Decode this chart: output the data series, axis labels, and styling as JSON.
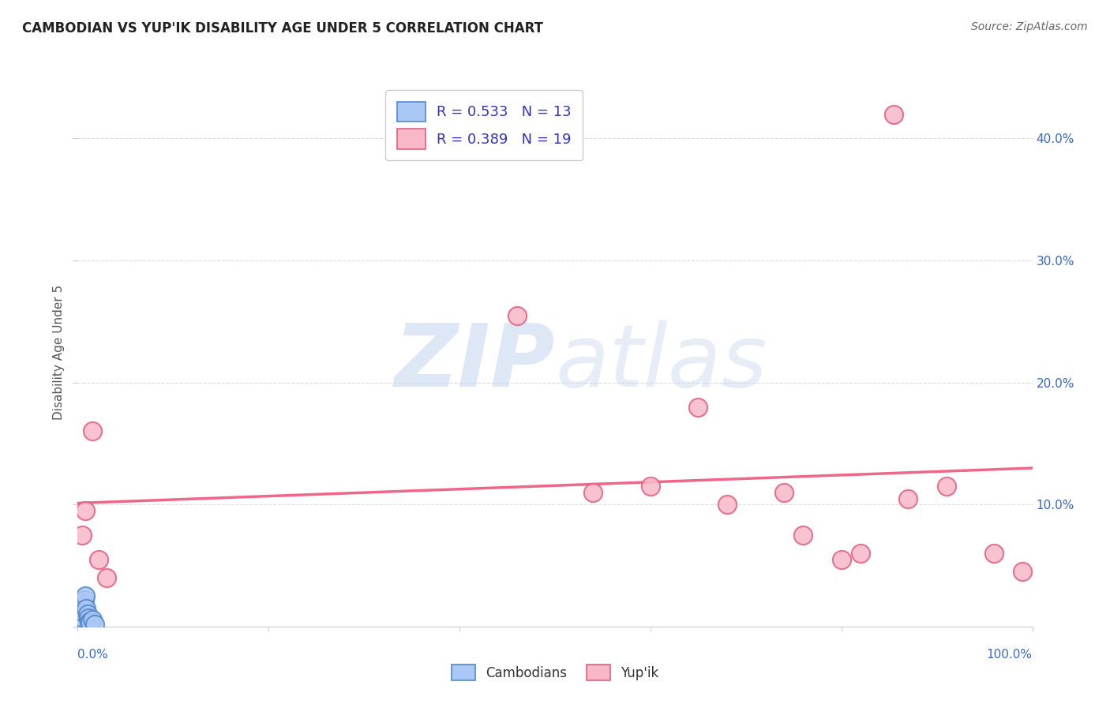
{
  "title": "CAMBODIAN VS YUP'IK DISABILITY AGE UNDER 5 CORRELATION CHART",
  "source": "Source: ZipAtlas.com",
  "ylabel": "Disability Age Under 5",
  "xlim": [
    0.0,
    1.0
  ],
  "ylim": [
    0.0,
    0.45
  ],
  "yticks": [
    0.0,
    0.1,
    0.2,
    0.3,
    0.4
  ],
  "right_yticklabels": [
    "",
    "10.0%",
    "20.0%",
    "30.0%",
    "40.0%"
  ],
  "cambodian_x": [
    0.003,
    0.004,
    0.005,
    0.006,
    0.007,
    0.008,
    0.009,
    0.01,
    0.011,
    0.012,
    0.013,
    0.015,
    0.018
  ],
  "cambodian_y": [
    0.005,
    0.008,
    0.012,
    0.018,
    0.022,
    0.025,
    0.015,
    0.01,
    0.007,
    0.004,
    0.003,
    0.006,
    0.002
  ],
  "yupik_x": [
    0.005,
    0.008,
    0.015,
    0.022,
    0.03,
    0.46,
    0.54,
    0.6,
    0.65,
    0.68,
    0.74,
    0.76,
    0.8,
    0.82,
    0.855,
    0.87,
    0.91,
    0.96,
    0.99
  ],
  "yupik_y": [
    0.075,
    0.095,
    0.16,
    0.055,
    0.04,
    0.255,
    0.11,
    0.115,
    0.18,
    0.1,
    0.11,
    0.075,
    0.055,
    0.06,
    0.42,
    0.105,
    0.115,
    0.06,
    0.045
  ],
  "cambodian_color": "#aac8f5",
  "yupik_color": "#f8b8c8",
  "cambodian_edge": "#5588cc",
  "yupik_edge": "#e06080",
  "trendline_blue_color": "#99bbee",
  "trendline_pink_color": "#ee6688",
  "R_cambodian": 0.533,
  "N_cambodian": 13,
  "R_yupik": 0.389,
  "N_yupik": 19,
  "background_color": "#ffffff",
  "grid_color": "#dddddd"
}
